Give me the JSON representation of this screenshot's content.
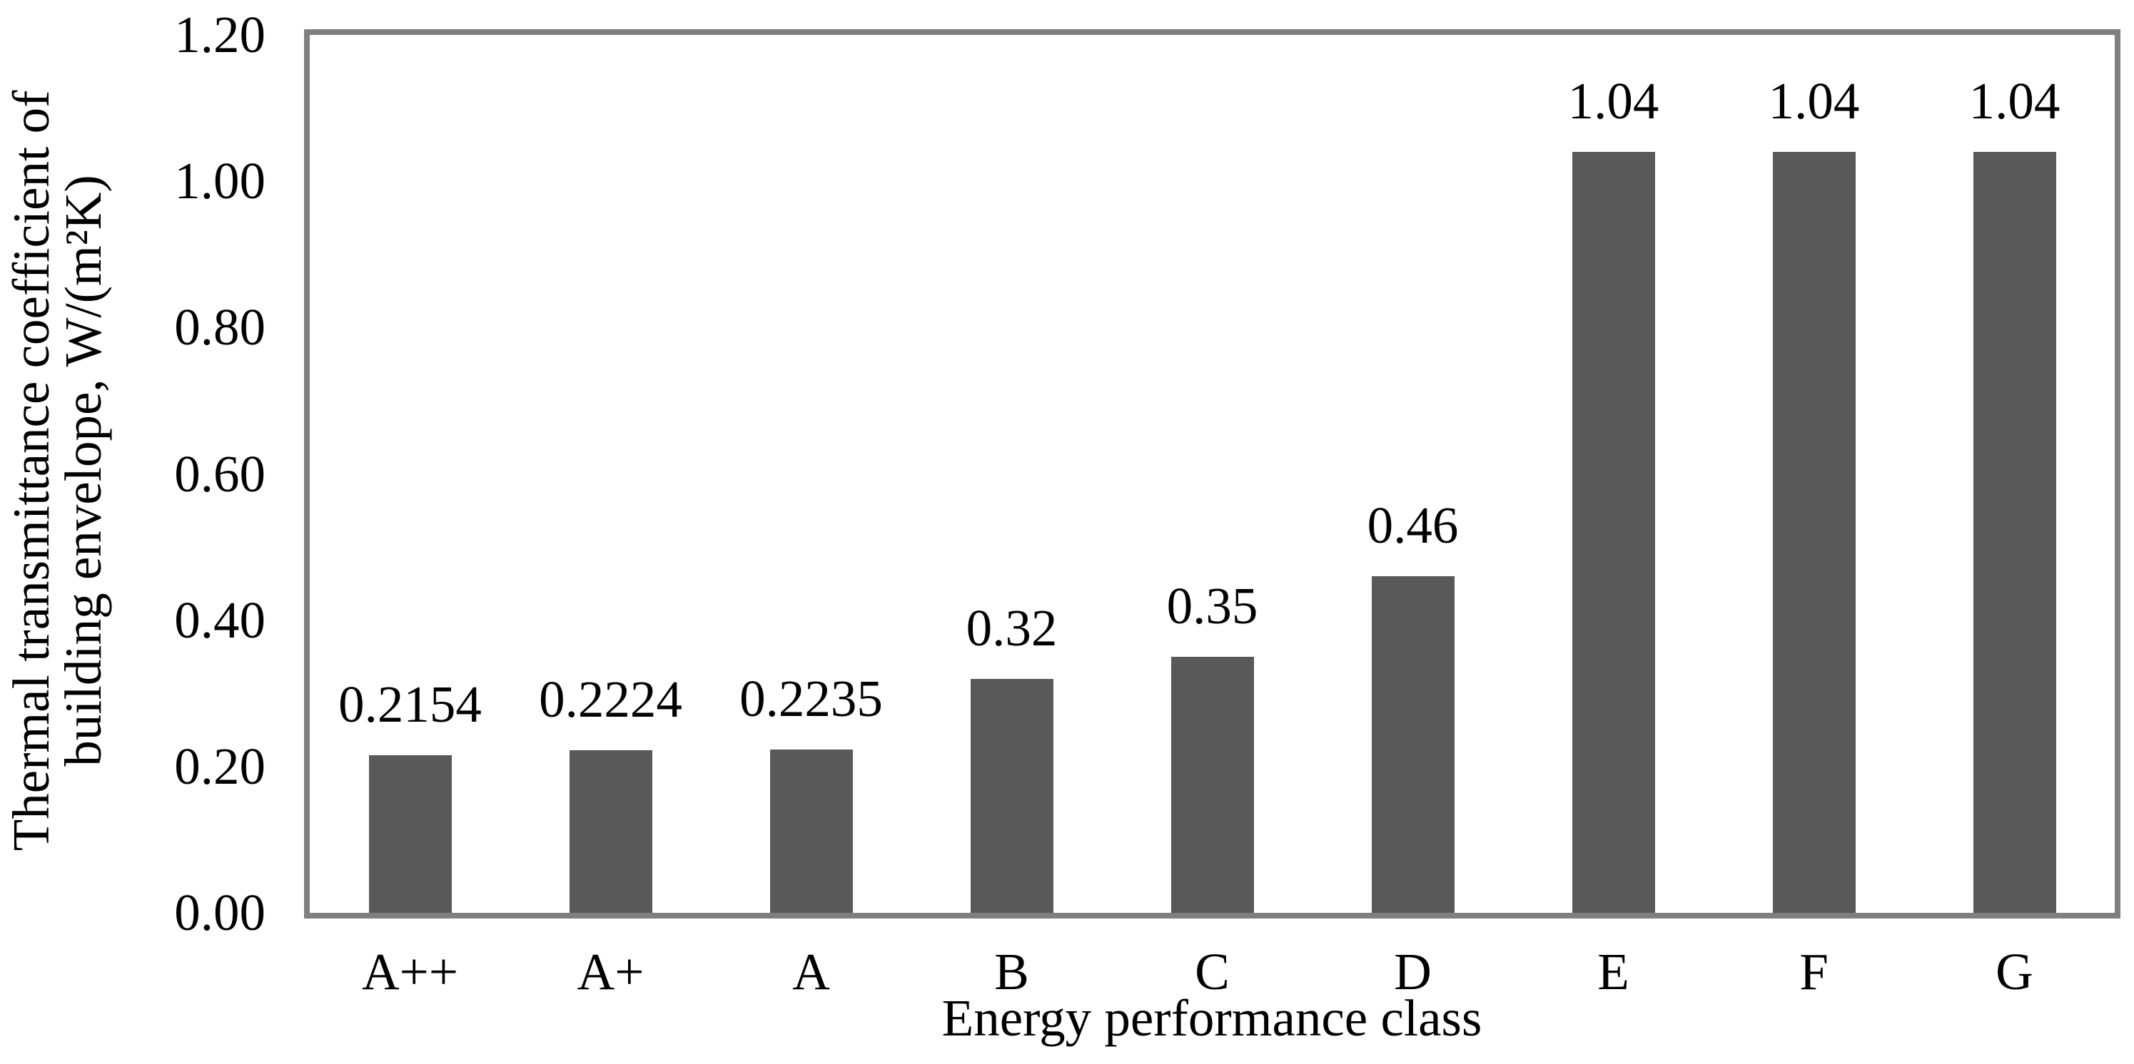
{
  "chart_data": {
    "type": "bar",
    "title": "",
    "categories": [
      "A++",
      "A+",
      "A",
      "B",
      "C",
      "D",
      "E",
      "F",
      "G"
    ],
    "values": [
      0.2154,
      0.2224,
      0.2235,
      0.32,
      0.35,
      0.46,
      1.04,
      1.04,
      1.04
    ],
    "value_labels": [
      "0.2154",
      "0.2224",
      "0.2235",
      "0.32",
      "0.35",
      "0.46",
      "1.04",
      "1.04",
      "1.04"
    ],
    "xlabel": "Energy performance class",
    "ylabel": "Thermal transmittance coefficient of building envelope, W/(m²K)",
    "ylabel_line1": "Thermal transmittance coefficient of",
    "ylabel_line2": "building envelope, W/(m²K)",
    "ylim": [
      0.0,
      1.2
    ],
    "ytick_step": 0.2,
    "yticks": [
      "1.20",
      "1.00",
      "0.80",
      "0.60",
      "0.40",
      "0.20",
      "0.00"
    ],
    "grid": false,
    "legend": "none",
    "bar_color": "#595959",
    "axis_frame_color": "#7f7f7f",
    "text_color": "#000000"
  }
}
